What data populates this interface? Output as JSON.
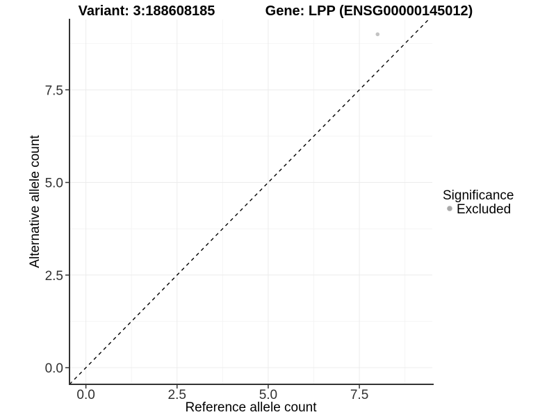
{
  "titles": {
    "variant": "Variant: 3:188608185",
    "gene": "Gene: LPP (ENSG00000145012)"
  },
  "axes": {
    "x_label": "Reference allele count",
    "y_label": "Alternative allele count"
  },
  "legend": {
    "title": "Significance",
    "items": [
      {
        "label": "Excluded",
        "color": "#a9a9a9"
      }
    ]
  },
  "chart_data": {
    "type": "scatter",
    "title_left": "Variant: 3:188608185",
    "title_right": "Gene: LPP (ENSG00000145012)",
    "xlabel": "Reference allele count",
    "ylabel": "Alternative allele count",
    "xlim": [
      -0.45,
      9.5
    ],
    "ylim": [
      -0.45,
      9.4
    ],
    "x_ticks": [
      {
        "value": 0,
        "label": "0.0"
      },
      {
        "value": 2.5,
        "label": "2.5"
      },
      {
        "value": 5,
        "label": "5.0"
      },
      {
        "value": 7.5,
        "label": "7.5"
      }
    ],
    "y_ticks": [
      {
        "value": 0,
        "label": "0.0"
      },
      {
        "value": 2.5,
        "label": "2.5"
      },
      {
        "value": 5,
        "label": "5.0"
      },
      {
        "value": 7.5,
        "label": "7.5"
      }
    ],
    "x_minor_breaks": [
      1.25,
      3.75,
      6.25,
      8.75
    ],
    "y_minor_breaks": [
      1.25,
      3.75,
      6.25,
      8.75
    ],
    "grid": "major and minor, light gray on white panel",
    "legend_position": "right",
    "series": [
      {
        "name": "Excluded",
        "color": "#c3c3c3",
        "points": [
          {
            "x": 8,
            "y": 9
          }
        ]
      }
    ],
    "identity_line": {
      "slope": 1,
      "intercept": 0,
      "linetype": "dashed",
      "color": "#000000"
    }
  },
  "style": {
    "major_grid_color": "#ececec",
    "minor_grid_color": "#f4f4f4",
    "axis_line_color": "#333333",
    "tick_color": "#333333",
    "point_radius": 2.8,
    "legend_key_radius": 3.8
  }
}
